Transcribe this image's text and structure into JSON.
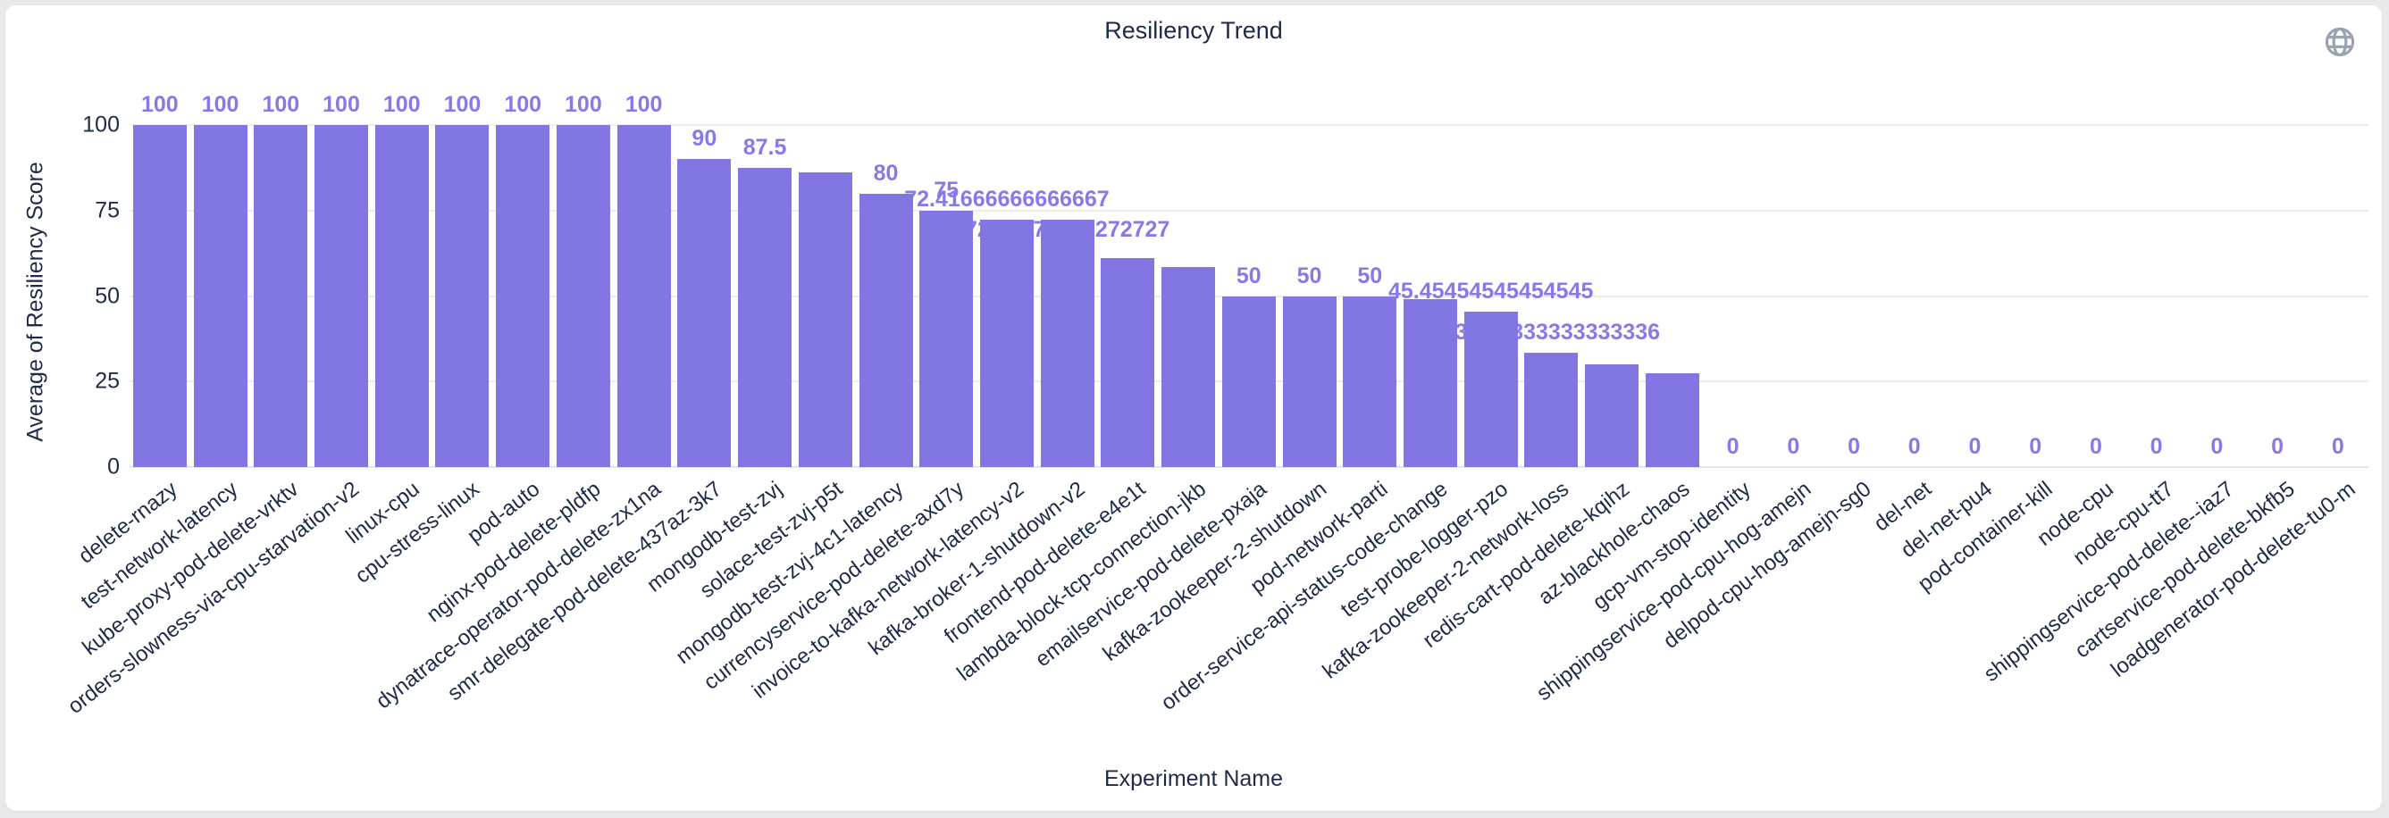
{
  "page": {
    "background_color": "#e9e9ec",
    "card_background_color": "#ffffff"
  },
  "header": {
    "title": "Resiliency Trend",
    "globe_icon": "globe-icon",
    "globe_icon_color": "#9aa3b1"
  },
  "chart_data": {
    "type": "bar",
    "title": "Resiliency Trend",
    "xlabel": "Experiment Name",
    "ylabel": "Average of Resiliency Score",
    "ylim": [
      0,
      100
    ],
    "yticks": [
      0,
      25,
      50,
      75,
      100
    ],
    "grid": true,
    "legend": "none",
    "bar_color": "#8276e3",
    "value_label_color": "#8879eb",
    "axis_text_color": "#1d2a49",
    "categories": [
      "delete-rnazy",
      "test-network-latency",
      "kube-proxy-pod-delete-vrktv",
      "orders-slowness-via-cpu-starvation-v2",
      "linux-cpu",
      "cpu-stress-linux",
      "pod-auto",
      "nginx-pod-delete-pldfp",
      "dynatrace-operator-pod-delete-zx1na",
      "smr-delegate-pod-delete-437az-3k7",
      "mongodb-test-zvj",
      "solace-test-zvj-p5t",
      "mongodb-test-zvj-4c1-latency",
      "currencyservice-pod-delete-axd7y",
      "invoice-to-kafka-network-latency-v2",
      "kafka-broker-1-shutdown-v2",
      "frontend-pod-delete-e4e1t",
      "lambda-block-tcp-connection-jkb",
      "emailservice-pod-delete-pxaja",
      "kafka-zookeeper-2-shutdown",
      "pod-network-parti",
      "order-service-api-status-code-change",
      "test-probe-logger-pzo",
      "kafka-zookeeper-2-network-loss",
      "redis-cart-pod-delete-kqihz",
      "az-blackhole-chaos",
      "gcp-vm-stop-identity",
      "shippingservice-pod-cpu-hog-amejn",
      "delpod-cpu-hog-amejn-sg0",
      "del-net",
      "del-net-pu4",
      "pod-container-kill",
      "node-cpu",
      "node-cpu-tt7",
      "shippingservice-pod-delete--iaz7",
      "cartservice-pod-delete-bkfb5",
      "loadgenerator-pod-delete-tu0-m"
    ],
    "values": [
      100,
      100,
      100,
      100,
      100,
      100,
      100,
      100,
      100,
      90,
      87.5,
      86.25,
      80,
      75,
      72.41666666666667,
      72.27272727272727,
      61,
      58.5,
      50,
      50,
      50,
      49,
      45.45454545454545,
      33.333333333333336,
      30,
      27.3,
      0,
      0,
      0,
      0,
      0,
      0,
      0,
      0,
      0,
      0,
      0
    ],
    "value_labels": [
      "100",
      "100",
      "100",
      "100",
      "100",
      "100",
      "100",
      "100",
      "100",
      "90",
      "87.5",
      null,
      "80",
      "75",
      "72.41666666666667",
      "72.27272727272727",
      null,
      null,
      "50",
      "50",
      "50",
      null,
      "45.45454545454545",
      "33.333333333333336",
      null,
      null,
      "0",
      "0",
      "0",
      "0",
      "0",
      "0",
      "0",
      "0",
      "0",
      "0",
      "0"
    ],
    "value_label_dy": {
      "15": 34
    }
  }
}
